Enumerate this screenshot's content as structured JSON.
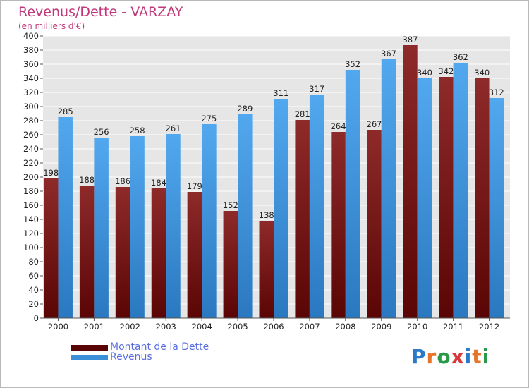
{
  "chart_data": {
    "type": "bar",
    "title": "Revenus/Dette - VARZAY",
    "subtitle": "(en milliers d'€)",
    "categories": [
      "2000",
      "2001",
      "2002",
      "2003",
      "2004",
      "2005",
      "2006",
      "2007",
      "2008",
      "2009",
      "2010",
      "2011",
      "2012"
    ],
    "series": [
      {
        "name": "Montant de la Dette",
        "color": "#7a1a1a",
        "values": [
          198,
          188,
          186,
          184,
          179,
          152,
          138,
          281,
          264,
          267,
          387,
          342,
          340
        ]
      },
      {
        "name": "Revenus",
        "color": "#3a8fd8",
        "values": [
          285,
          256,
          258,
          261,
          275,
          289,
          311,
          317,
          352,
          367,
          340,
          362,
          312
        ]
      }
    ],
    "ylim": [
      0,
      400
    ],
    "yticks": [
      0,
      20,
      40,
      60,
      80,
      100,
      120,
      140,
      160,
      180,
      200,
      220,
      240,
      260,
      280,
      300,
      320,
      340,
      360,
      380,
      400
    ],
    "grid": true,
    "legend": "bottom-left"
  },
  "logo": {
    "text": "Proxiti",
    "colors": [
      "#2a7ac8",
      "#e8742a",
      "#2a9a4a",
      "#d83a3a",
      "#2a7ac8",
      "#e8742a",
      "#2a9a4a"
    ]
  }
}
